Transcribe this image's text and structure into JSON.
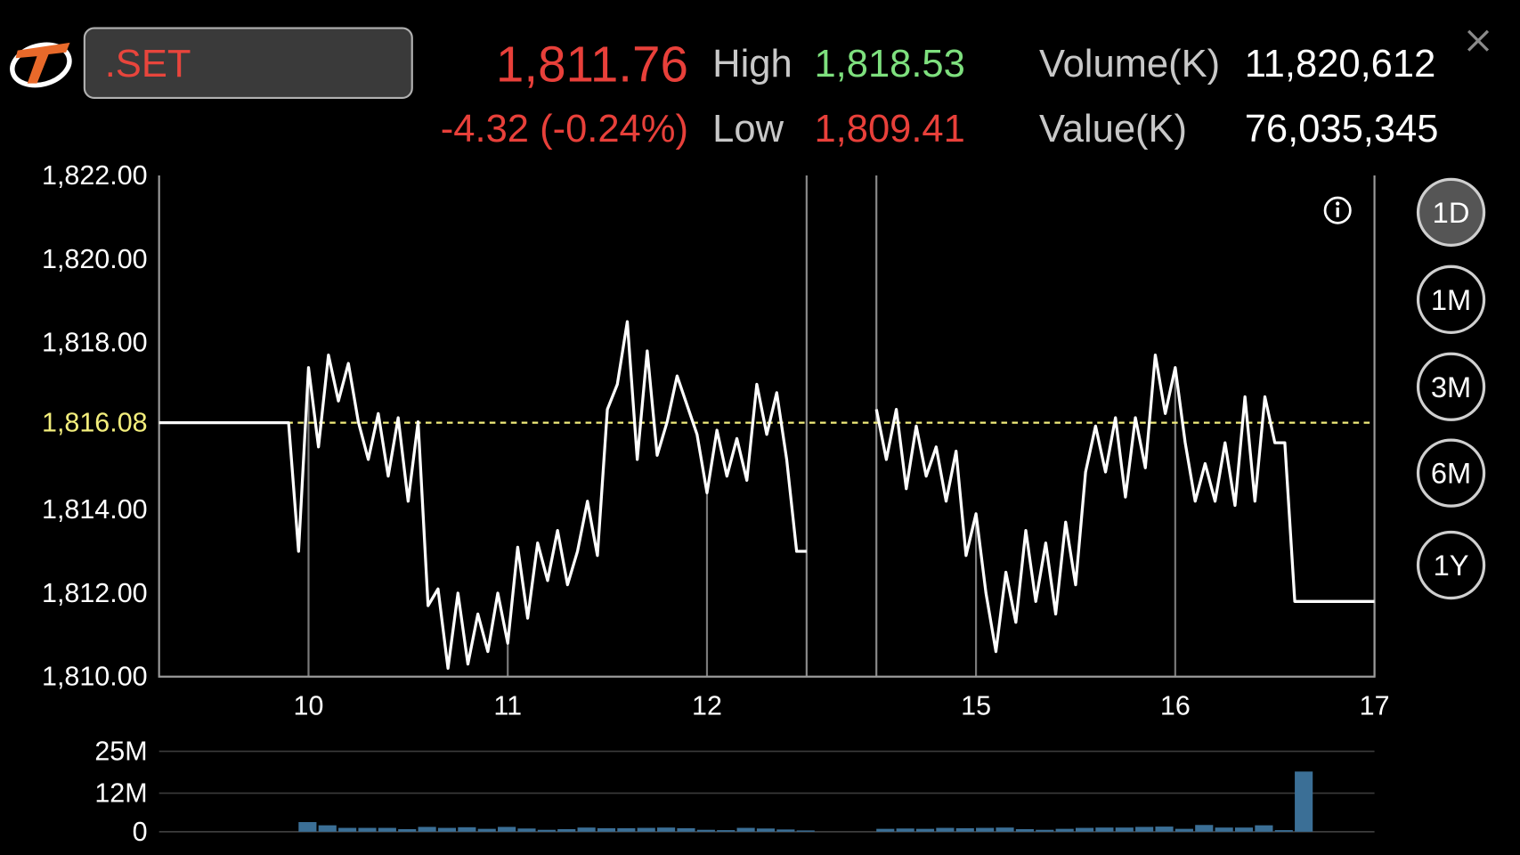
{
  "header": {
    "symbol": ".SET",
    "last": "1,811.76",
    "change": "-4.32 (-0.24%)",
    "high_label": "High",
    "high": "1,818.53",
    "low_label": "Low",
    "low": "1,809.41",
    "volume_label": "Volume(K)",
    "volume": "11,820,612",
    "value_label": "Value(K)",
    "value": "76,035,345"
  },
  "periods": [
    "1D",
    "1M",
    "3M",
    "6M",
    "1Y"
  ],
  "selected_period": "1D",
  "chart_data": [
    {
      "type": "line",
      "color": "#ffffff",
      "x": [
        9.25,
        9.9,
        9.95,
        10,
        10.05,
        10.1,
        10.15,
        10.2,
        10.25,
        10.3,
        10.35,
        10.4,
        10.45,
        10.5,
        10.55,
        10.6,
        10.65,
        10.7,
        10.75,
        10.8,
        10.85,
        10.9,
        10.95,
        11,
        11.05,
        11.1,
        11.15,
        11.2,
        11.25,
        11.3,
        11.35,
        11.4,
        11.45,
        11.5,
        11.55,
        11.6,
        11.65,
        11.7,
        11.75,
        11.8,
        11.85,
        11.9,
        11.95,
        12,
        12.05,
        12.1,
        12.15,
        12.2,
        12.25,
        12.3,
        12.35,
        12.4,
        12.45,
        12.5,
        null,
        14.5,
        14.55,
        14.6,
        14.65,
        14.7,
        14.75,
        14.8,
        14.85,
        14.9,
        14.95,
        15,
        15.05,
        15.1,
        15.15,
        15.2,
        15.25,
        15.3,
        15.35,
        15.4,
        15.45,
        15.5,
        15.55,
        15.6,
        15.65,
        15.7,
        15.75,
        15.8,
        15.85,
        15.9,
        15.95,
        16,
        16.05,
        16.1,
        16.15,
        16.2,
        16.25,
        16.3,
        16.35,
        16.4,
        16.45,
        16.5,
        16.55,
        16.6,
        17
      ],
      "values": [
        1816.08,
        1816.08,
        1813.0,
        1817.4,
        1815.5,
        1817.7,
        1816.6,
        1817.5,
        1816.1,
        1815.2,
        1816.3,
        1814.8,
        1816.2,
        1814.2,
        1816.1,
        1811.7,
        1812.1,
        1810.2,
        1812.0,
        1810.3,
        1811.5,
        1810.6,
        1812.0,
        1810.8,
        1813.1,
        1811.4,
        1813.2,
        1812.3,
        1813.5,
        1812.2,
        1813.0,
        1814.2,
        1812.9,
        1816.4,
        1817.0,
        1818.5,
        1815.2,
        1817.8,
        1815.3,
        1816.1,
        1817.2,
        1816.5,
        1815.8,
        1814.4,
        1815.9,
        1814.8,
        1815.7,
        1814.7,
        1817.0,
        1815.8,
        1816.8,
        1815.2,
        1813.0,
        1813.0,
        null,
        1816.4,
        1815.2,
        1816.4,
        1814.5,
        1816.0,
        1814.8,
        1815.5,
        1814.2,
        1815.4,
        1812.9,
        1813.9,
        1812.0,
        1810.6,
        1812.5,
        1811.3,
        1813.5,
        1811.8,
        1813.2,
        1811.5,
        1813.7,
        1812.2,
        1814.9,
        1816.0,
        1814.9,
        1816.2,
        1814.3,
        1816.2,
        1815.0,
        1817.7,
        1816.3,
        1817.4,
        1815.6,
        1814.2,
        1815.1,
        1814.2,
        1815.6,
        1814.1,
        1816.7,
        1814.2,
        1816.7,
        1815.6,
        1815.6,
        1811.8,
        1811.8
      ],
      "xlim": [
        9.25,
        17
      ],
      "session_break": [
        12.5,
        14.5
      ],
      "xticks": [
        10,
        11,
        12,
        15,
        16,
        17
      ],
      "xgrid": true,
      "ylim": [
        1810,
        1822
      ],
      "yticks": [
        {
          "value": 1810,
          "label": "1,810.00"
        },
        {
          "value": 1812,
          "label": "1,812.00"
        },
        {
          "value": 1814,
          "label": "1,814.00"
        },
        {
          "value": 1818,
          "label": "1,818.00"
        },
        {
          "value": 1820,
          "label": "1,820.00"
        },
        {
          "value": 1822,
          "label": "1,822.00"
        }
      ],
      "prev_close": {
        "value": 1816.08,
        "label": "1,816.08",
        "color": "#f3ee7c"
      }
    },
    {
      "type": "bar",
      "color": "#3b6f96",
      "x": [
        9.95,
        10.05,
        10.15,
        10.25,
        10.35,
        10.45,
        10.55,
        10.65,
        10.75,
        10.85,
        10.95,
        11.05,
        11.15,
        11.25,
        11.35,
        11.45,
        11.55,
        11.65,
        11.75,
        11.85,
        11.95,
        12.05,
        12.15,
        12.25,
        12.35,
        12.45,
        14.5,
        14.6,
        14.7,
        14.8,
        14.9,
        15,
        15.1,
        15.2,
        15.3,
        15.4,
        15.5,
        15.6,
        15.7,
        15.8,
        15.9,
        16,
        16.1,
        16.2,
        16.3,
        16.4,
        16.5,
        16.6
      ],
      "values": [
        3.0,
        2.0,
        1.2,
        1.2,
        1.2,
        0.8,
        1.5,
        1.2,
        1.4,
        0.9,
        1.5,
        1.0,
        0.6,
        0.8,
        1.3,
        1.1,
        1.1,
        1.2,
        1.3,
        1.1,
        0.6,
        0.5,
        1.2,
        1.0,
        0.7,
        0.4,
        0.9,
        1.0,
        0.9,
        1.2,
        1.1,
        1.2,
        1.3,
        0.8,
        0.6,
        0.9,
        1.2,
        1.3,
        1.3,
        1.5,
        1.6,
        0.9,
        2.1,
        1.3,
        1.3,
        2.0,
        0.5,
        18.7
      ],
      "ylim": [
        0,
        25
      ],
      "yticks": [
        0,
        {
          "value": 12,
          "label": "12M"
        },
        {
          "value": 25,
          "label": "25M"
        }
      ]
    }
  ]
}
